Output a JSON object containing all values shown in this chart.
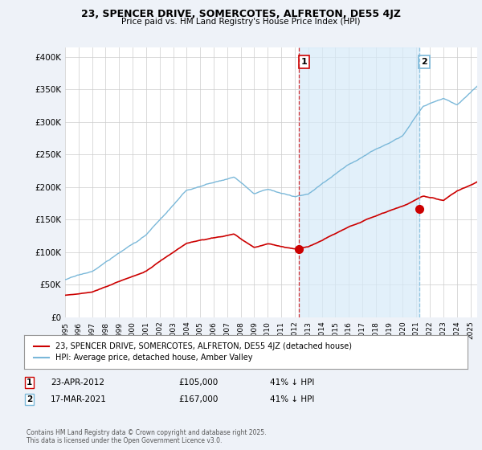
{
  "title": "23, SPENCER DRIVE, SOMERCOTES, ALFRETON, DE55 4JZ",
  "subtitle": "Price paid vs. HM Land Registry's House Price Index (HPI)",
  "ylabel_ticks": [
    "£0",
    "£50K",
    "£100K",
    "£150K",
    "£200K",
    "£250K",
    "£300K",
    "£350K",
    "£400K"
  ],
  "ytick_values": [
    0,
    50000,
    100000,
    150000,
    200000,
    250000,
    300000,
    350000,
    400000
  ],
  "ylim": [
    0,
    415000
  ],
  "xlim_start": 1995.0,
  "xlim_end": 2025.5,
  "hpi_color": "#7ab8d9",
  "hpi_fill_color": "#d6eaf8",
  "price_color": "#cc0000",
  "marker1_year": 2012.3,
  "marker2_year": 2021.2,
  "marker1_price": 105000,
  "marker2_price": 167000,
  "vline1_color": "#cc0000",
  "vline2_color": "#7ab8d9",
  "annotation1": "23-APR-2012",
  "annotation1_val": "£105,000",
  "annotation1_hpi": "41% ↓ HPI",
  "annotation2": "17-MAR-2021",
  "annotation2_val": "£167,000",
  "annotation2_hpi": "41% ↓ HPI",
  "legend_label1": "23, SPENCER DRIVE, SOMERCOTES, ALFRETON, DE55 4JZ (detached house)",
  "legend_label2": "HPI: Average price, detached house, Amber Valley",
  "footer": "Contains HM Land Registry data © Crown copyright and database right 2025.\nThis data is licensed under the Open Government Licence v3.0.",
  "background_color": "#eef2f8",
  "plot_bg_color": "#ffffff",
  "grid_color": "#cccccc"
}
